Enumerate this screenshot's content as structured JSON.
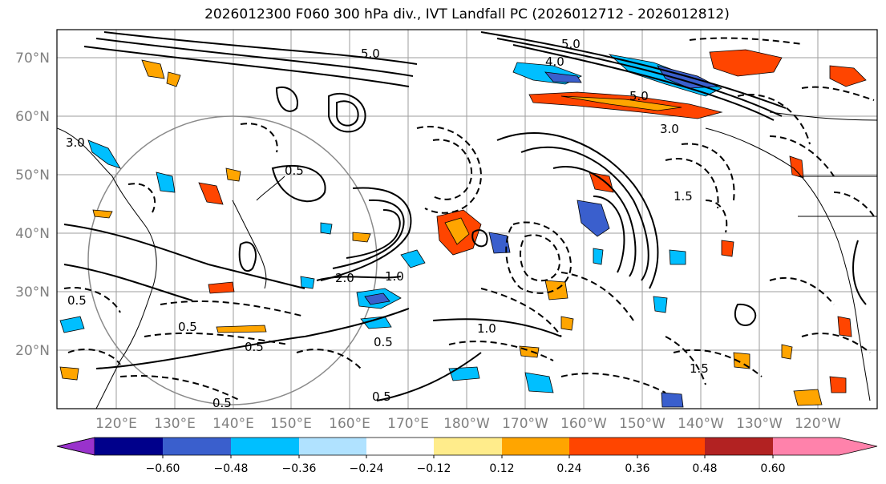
{
  "title": "2026012300 F060 300 hPa div., IVT Landfall PC (2026012712 - 2026012812)",
  "map": {
    "lat_labels": [
      "70°N",
      "60°N",
      "50°N",
      "40°N",
      "30°N",
      "20°N"
    ],
    "lon_labels": [
      "120°E",
      "130°E",
      "140°E",
      "150°E",
      "160°E",
      "170°E",
      "180°W",
      "170°W",
      "160°W",
      "150°W",
      "140°W",
      "130°W",
      "120°W"
    ],
    "contour_labels": [
      "5.0",
      "5.0",
      "4.0",
      "5.0",
      "3.0",
      "3.0",
      "2.0",
      "1.0",
      "1.0",
      "0.5",
      "0.5",
      "0.5",
      "0.5",
      "0.5",
      "1.5",
      "1.5",
      "0.5",
      "0.5"
    ]
  },
  "colorbar": {
    "ticks": [
      "−0.60",
      "−0.48",
      "−0.36",
      "−0.24",
      "−0.12",
      "0.12",
      "0.24",
      "0.36",
      "0.48",
      "0.60"
    ],
    "colors": [
      "#9932cc",
      "#00008b",
      "#3a5fcd",
      "#00bfff",
      "#b0e2ff",
      "#ffffff",
      "#ffec8b",
      "#ffa500",
      "#ff4500",
      "#b22222",
      "#ff82ab"
    ]
  }
}
